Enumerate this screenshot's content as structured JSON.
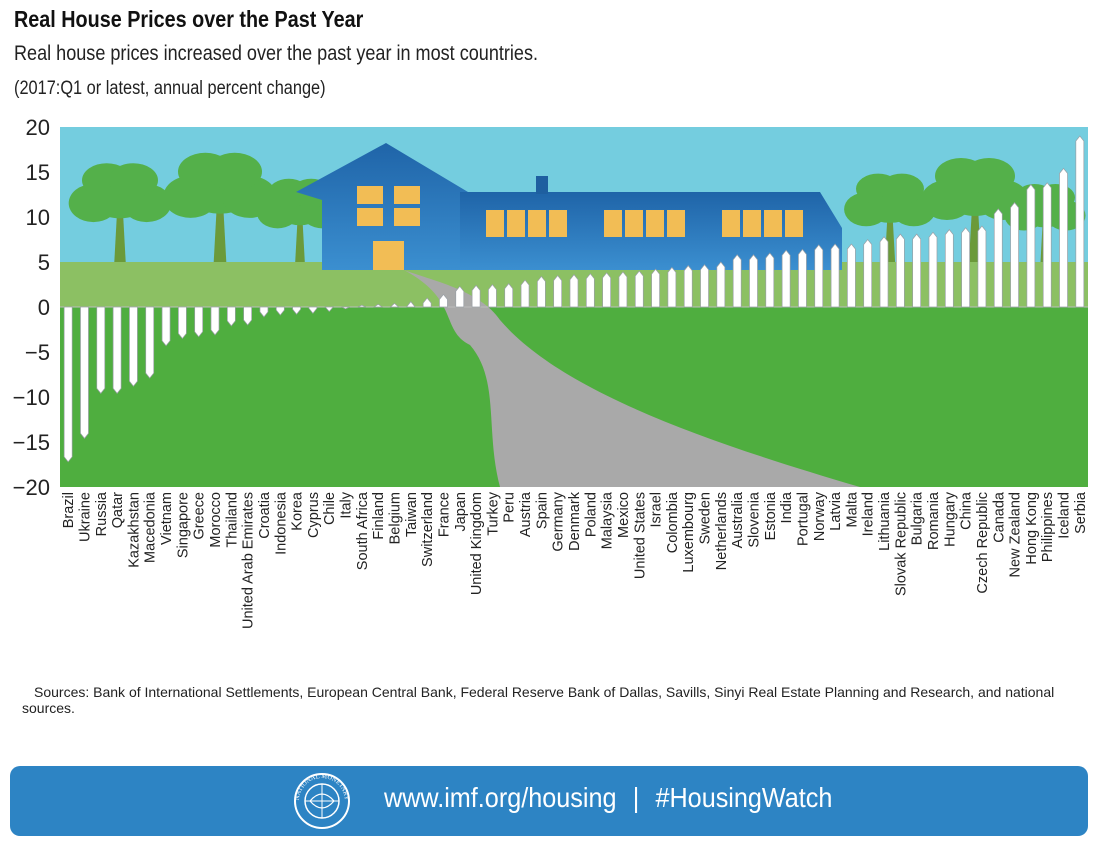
{
  "title": "Real House Prices over the Past Year",
  "subtitle": "Real house prices increased over the past year in most countries.",
  "note": "(2017:Q1 or latest, annual percent change)",
  "source": "Sources: Bank of International Settlements, European Central Bank, Federal Reserve Bank of Dallas, Savills, Sinyi Real Estate Planning and Research, and national sources.",
  "footer": {
    "url": "www.imf.org/housing",
    "separator": "|",
    "hashtag": "#HousingWatch",
    "seal_text": "INTERNATIONAL MONETARY FUND"
  },
  "colors": {
    "sky": "#74cddf",
    "grass_light": "#8cc063",
    "grass_dark": "#4fae3f",
    "tree": "#54b04a",
    "trunk": "#6b9a3a",
    "house": "#2f7fc1",
    "roof": "#1e5fa0",
    "window": "#f2bd55",
    "path": "#a9a9a9",
    "picket": "#ffffff",
    "footer": "#2d84c4"
  },
  "chart_data": {
    "type": "bar",
    "title": "Real House Prices over the Past Year",
    "subtitle": "Real house prices increased over the past year in most countries.",
    "ylabel": "",
    "xlabel": "",
    "ylim": [
      -20,
      20
    ],
    "yticks": [
      20,
      15,
      10,
      5,
      0,
      -5,
      -10,
      -15,
      -20
    ],
    "grid": false,
    "categories": [
      "Brazil",
      "Ukraine",
      "Russia",
      "Qatar",
      "Kazakhstan",
      "Macedonia",
      "Vietnam",
      "Singapore",
      "Greece",
      "Morocco",
      "Thailand",
      "United Arab Emirates",
      "Croatia",
      "Indonesia",
      "Korea",
      "Cyprus",
      "Chile",
      "Italy",
      "South Africa",
      "Finland",
      "Belgium",
      "Taiwan",
      "Switzerland",
      "France",
      "Japan",
      "United Kingdom",
      "Turkey",
      "Peru",
      "Austria",
      "Spain",
      "Germany",
      "Denmark",
      "Poland",
      "Malaysia",
      "Mexico",
      "United States",
      "Israel",
      "Colombia",
      "Luxembourg",
      "Sweden",
      "Netherlands",
      "Australia",
      "Slovenia",
      "Estonia",
      "India",
      "Portugal",
      "Norway",
      "Latvia",
      "Malta",
      "Ireland",
      "Lithuania",
      "Slovak Republic",
      "Bulgaria",
      "Romania",
      "Hungary",
      "China",
      "Czech Republic",
      "Canada",
      "New Zealand",
      "Hong Kong",
      "Philippines",
      "Iceland",
      "Serbia"
    ],
    "values": [
      -17.2,
      -14.6,
      -9.6,
      -9.6,
      -8.8,
      -7.9,
      -4.3,
      -3.5,
      -3.3,
      -3.1,
      -2.1,
      -2.0,
      -1.1,
      -0.9,
      -0.8,
      -0.7,
      -0.5,
      -0.2,
      0.2,
      0.3,
      0.4,
      0.6,
      1.0,
      1.4,
      2.3,
      2.4,
      2.5,
      2.6,
      3.0,
      3.4,
      3.5,
      3.6,
      3.7,
      3.8,
      3.9,
      4.0,
      4.2,
      4.4,
      4.6,
      4.7,
      5.0,
      5.8,
      5.8,
      6.0,
      6.3,
      6.4,
      6.9,
      7.0,
      7.0,
      7.5,
      7.8,
      8.1,
      8.1,
      8.3,
      8.6,
      8.8,
      9.0,
      10.9,
      11.6,
      13.6,
      13.8,
      15.4,
      19.0
    ]
  }
}
